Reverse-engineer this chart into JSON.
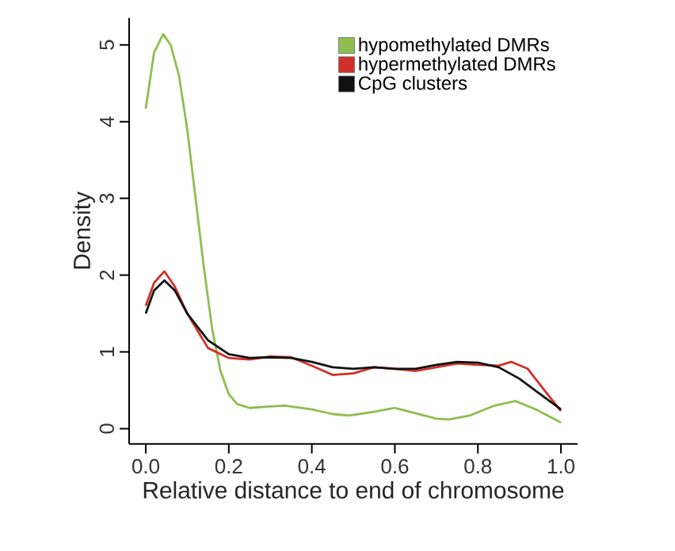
{
  "chart_data": {
    "type": "line",
    "xlabel": "Relative distance to end of chromosome",
    "ylabel": "Density",
    "xlim": [
      -0.04,
      1.04
    ],
    "ylim": [
      -0.2,
      5.35
    ],
    "xticks": [
      {
        "value": 0,
        "label": "0.0"
      },
      {
        "value": 0.2,
        "label": "0.2"
      },
      {
        "value": 0.4,
        "label": "0.4"
      },
      {
        "value": 0.6,
        "label": "0.6"
      },
      {
        "value": 0.8,
        "label": "0.8"
      },
      {
        "value": 1,
        "label": "1.0"
      }
    ],
    "yticks": [
      0,
      1,
      2,
      3,
      4,
      5
    ],
    "legend": "top right",
    "series": [
      {
        "name": "hypomethylated DMRs",
        "color": "#8cbf4f",
        "x": [
          0,
          0.02,
          0.042,
          0.06,
          0.08,
          0.1,
          0.12,
          0.14,
          0.16,
          0.18,
          0.2,
          0.22,
          0.25,
          0.3,
          0.335,
          0.4,
          0.45,
          0.49,
          0.55,
          0.6,
          0.65,
          0.7,
          0.73,
          0.78,
          0.84,
          0.89,
          0.94,
          1.0
        ],
        "values": [
          4.17,
          4.9,
          5.14,
          5.0,
          4.6,
          3.9,
          3.0,
          2.1,
          1.3,
          0.75,
          0.45,
          0.32,
          0.27,
          0.29,
          0.3,
          0.25,
          0.19,
          0.17,
          0.22,
          0.27,
          0.2,
          0.13,
          0.12,
          0.17,
          0.3,
          0.36,
          0.25,
          0.08
        ]
      },
      {
        "name": "hypermethylated DMRs",
        "color": "#d0302a",
        "x": [
          0,
          0.02,
          0.045,
          0.07,
          0.1,
          0.15,
          0.2,
          0.25,
          0.3,
          0.35,
          0.4,
          0.45,
          0.5,
          0.55,
          0.6,
          0.65,
          0.7,
          0.75,
          0.8,
          0.85,
          0.88,
          0.92,
          0.96,
          1.0
        ],
        "values": [
          1.6,
          1.9,
          2.05,
          1.85,
          1.5,
          1.05,
          0.92,
          0.9,
          0.94,
          0.93,
          0.82,
          0.7,
          0.72,
          0.8,
          0.78,
          0.75,
          0.8,
          0.85,
          0.83,
          0.82,
          0.87,
          0.78,
          0.5,
          0.23
        ]
      },
      {
        "name": "CpG clusters",
        "color": "#111111",
        "x": [
          0,
          0.02,
          0.045,
          0.07,
          0.1,
          0.15,
          0.2,
          0.25,
          0.3,
          0.35,
          0.4,
          0.45,
          0.5,
          0.55,
          0.6,
          0.65,
          0.7,
          0.75,
          0.8,
          0.85,
          0.9,
          0.95,
          1.0
        ],
        "values": [
          1.5,
          1.8,
          1.93,
          1.8,
          1.5,
          1.15,
          0.97,
          0.92,
          0.93,
          0.92,
          0.87,
          0.8,
          0.78,
          0.8,
          0.78,
          0.78,
          0.83,
          0.87,
          0.86,
          0.8,
          0.65,
          0.45,
          0.25
        ]
      }
    ]
  }
}
